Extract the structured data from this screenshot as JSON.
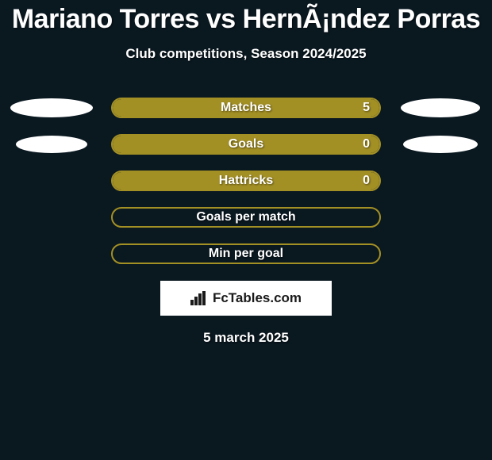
{
  "header": {
    "title": "Mariano Torres vs HernÃ¡ndez Porras",
    "subtitle": "Club competitions, Season 2024/2025"
  },
  "colors": {
    "background": "#0a1820",
    "bar_border": "#a39025",
    "bar_fill": "#a39025",
    "ellipse_left": "#ffffff",
    "ellipse_right": "#ffffff",
    "text": "#ffffff"
  },
  "ellipses": {
    "row0_left": {
      "w": 104,
      "h": 24
    },
    "row0_right": {
      "w": 100,
      "h": 24
    },
    "row1_left": {
      "w": 90,
      "h": 22
    },
    "row1_right": {
      "w": 94,
      "h": 22
    }
  },
  "stats": [
    {
      "label": "Matches",
      "value_left": "",
      "value_right": "5",
      "fill_side": "right",
      "fill_pct": 100,
      "show_left_ellipse": true,
      "show_right_ellipse": true
    },
    {
      "label": "Goals",
      "value_left": "",
      "value_right": "0",
      "fill_side": "right",
      "fill_pct": 100,
      "show_left_ellipse": true,
      "show_right_ellipse": true
    },
    {
      "label": "Hattricks",
      "value_left": "",
      "value_right": "0",
      "fill_side": "right",
      "fill_pct": 100,
      "show_left_ellipse": false,
      "show_right_ellipse": false
    },
    {
      "label": "Goals per match",
      "value_left": "",
      "value_right": "",
      "fill_side": "none",
      "fill_pct": 0,
      "show_left_ellipse": false,
      "show_right_ellipse": false
    },
    {
      "label": "Min per goal",
      "value_left": "",
      "value_right": "",
      "fill_side": "none",
      "fill_pct": 0,
      "show_left_ellipse": false,
      "show_right_ellipse": false
    }
  ],
  "footer": {
    "logo_text": "FcTables.com",
    "date": "5 march 2025"
  }
}
